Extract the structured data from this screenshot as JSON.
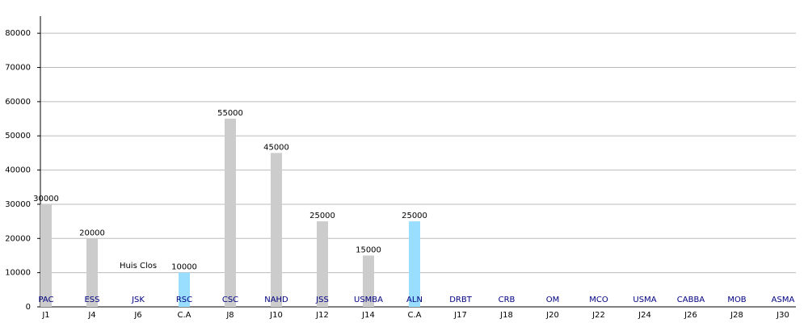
{
  "chart_data": {
    "type": "bar",
    "categories": [
      "J1",
      "J4",
      "J6",
      "C.A",
      "J8",
      "J10",
      "J12",
      "J14",
      "C.A",
      "J17",
      "J18",
      "J20",
      "J22",
      "J24",
      "J26",
      "J28",
      "J30"
    ],
    "teams": [
      "PAC",
      "ESS",
      "JSK",
      "RSC",
      "CSC",
      "NAHD",
      "JSS",
      "USMBA",
      "ALN",
      "DRBT",
      "CRB",
      "OM",
      "MCO",
      "USMA",
      "CABBA",
      "MOB",
      "ASMA"
    ],
    "values": [
      30000,
      20000,
      null,
      10000,
      55000,
      45000,
      25000,
      15000,
      25000,
      null,
      null,
      null,
      null,
      null,
      null,
      null,
      null
    ],
    "value_labels": [
      "30000",
      "20000",
      "Huis Clos",
      "10000",
      "55000",
      "45000",
      "25000",
      "15000",
      "25000",
      null,
      null,
      null,
      null,
      null,
      null,
      null,
      null
    ],
    "colors": [
      "#cccccc",
      "#cccccc",
      "#cccccc",
      "#99ddff",
      "#cccccc",
      "#cccccc",
      "#cccccc",
      "#cccccc",
      "#99ddff",
      "#cccccc",
      "#cccccc",
      "#cccccc",
      "#cccccc",
      "#cccccc",
      "#cccccc",
      "#cccccc",
      "#cccccc"
    ],
    "team_color": "#000080",
    "ylim": [
      0,
      85000
    ],
    "yticks": [
      0,
      10000,
      20000,
      30000,
      40000,
      50000,
      60000,
      70000,
      80000
    ],
    "grid": true
  }
}
